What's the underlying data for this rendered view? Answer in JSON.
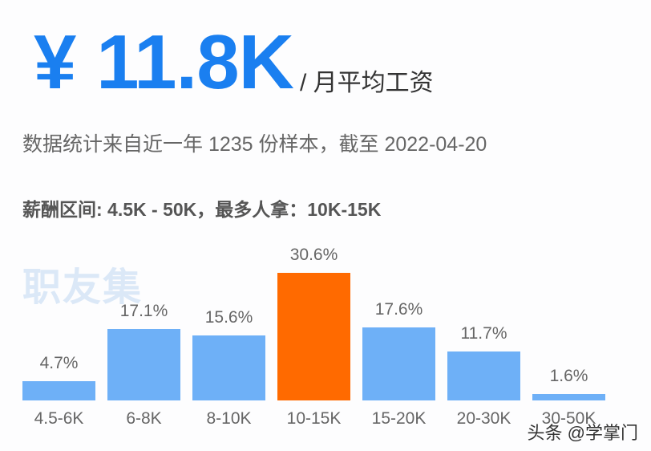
{
  "header": {
    "value": "¥ 11.8K",
    "unit": "/ 月平均工资",
    "subtitle": "数据统计来自近一年 1235 份样本，截至 2022-04-20",
    "range_text": "薪酬区间: 4.5K - 50K，最多人拿：10K-15K"
  },
  "watermark": "职友集",
  "credit": "头条 @学掌门",
  "colors": {
    "accent": "#1a7ff0",
    "bar": "#6eb0f7",
    "highlight": "#ff6a00"
  },
  "chart_data": {
    "type": "bar",
    "title": "¥ 11.8K / 月平均工资",
    "categories": [
      "4.5-6K",
      "6-8K",
      "8-10K",
      "10-15K",
      "15-20K",
      "20-30K",
      "30-50K"
    ],
    "values": [
      4.7,
      17.1,
      15.6,
      30.6,
      17.6,
      11.7,
      1.6
    ],
    "labels": [
      "4.7%",
      "17.1%",
      "15.6%",
      "30.6%",
      "17.6%",
      "11.7%",
      "1.6%"
    ],
    "highlight_index": 3,
    "xlabel": "",
    "ylabel": "",
    "unit": "%",
    "grid": false,
    "legend": "none"
  }
}
